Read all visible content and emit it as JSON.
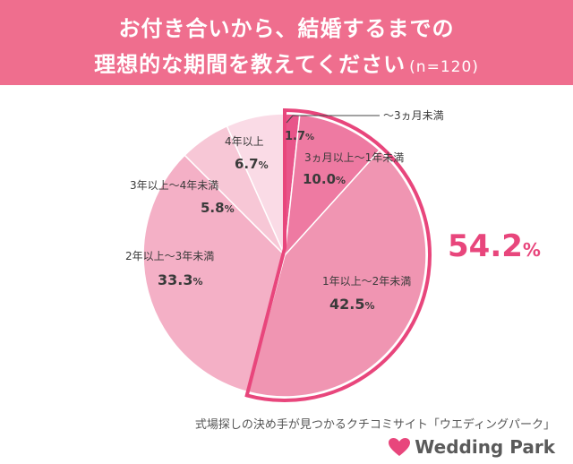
{
  "header": {
    "title_line1": "お付き合いから、結婚するまでの",
    "title_line2": "理想的な期間を教えてください",
    "sample": "(n=120)"
  },
  "chart_data": {
    "type": "pie",
    "slices": [
      {
        "label": "〜3ヵ月未満",
        "value": 1.7,
        "display": "1.7",
        "color": "#e8558a"
      },
      {
        "label": "3ヵ月以上〜1年未満",
        "value": 10.0,
        "display": "10.0",
        "color": "#ee7aa2"
      },
      {
        "label": "1年以上〜2年未満",
        "value": 42.5,
        "display": "42.5",
        "color": "#f095b2"
      },
      {
        "label": "2年以上〜3年未満",
        "value": 33.3,
        "display": "33.3",
        "color": "#f4b0c6"
      },
      {
        "label": "3年以上〜4年未満",
        "value": 5.8,
        "display": "5.8",
        "color": "#f7c7d6"
      },
      {
        "label": "4年以上",
        "value": 6.7,
        "display": "6.7",
        "color": "#fadbe6"
      }
    ],
    "unit": "%",
    "highlight": {
      "value": "54.2",
      "unit": "%",
      "color": "#e8467c",
      "outline_color": "#e8467c"
    }
  },
  "footer": {
    "source": "式場探しの決め手が見つかるクチコミサイト「ウエディングパーク」",
    "brand": "Wedding Park",
    "brand_icon": "heart-icon",
    "brand_color": "#e8467c"
  }
}
